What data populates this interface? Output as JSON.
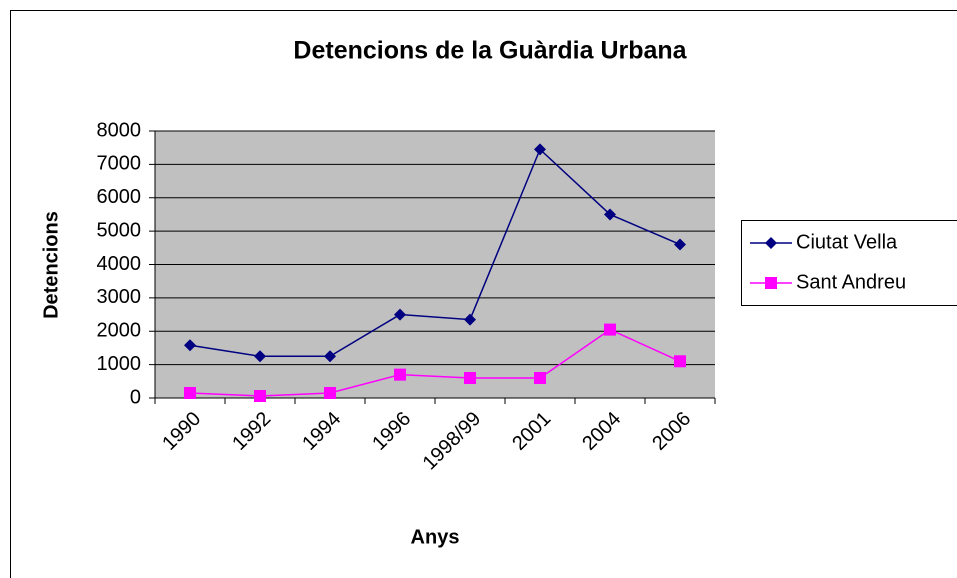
{
  "chart_data": {
    "type": "line",
    "title": "Detencions de la Guàrdia Urbana",
    "x_label": "Anys",
    "y_label": "Detencions",
    "categories": [
      "1990",
      "1992",
      "1994",
      "1996",
      "1998/99",
      "2001",
      "2004",
      "2006"
    ],
    "series": [
      {
        "name": "Ciutat Vella",
        "color": "#000080",
        "marker": "diamond",
        "values": [
          1580,
          1250,
          1250,
          2500,
          2350,
          7450,
          5500,
          4600
        ]
      },
      {
        "name": "Sant Andreu",
        "color": "#ff00ff",
        "marker": "square",
        "values": [
          150,
          60,
          150,
          700,
          600,
          600,
          2050,
          1100
        ]
      }
    ],
    "ylim": [
      0,
      8000
    ],
    "yticks": [
      0,
      1000,
      2000,
      3000,
      4000,
      5000,
      6000,
      7000,
      8000
    ],
    "grid": true,
    "legend": "right"
  }
}
